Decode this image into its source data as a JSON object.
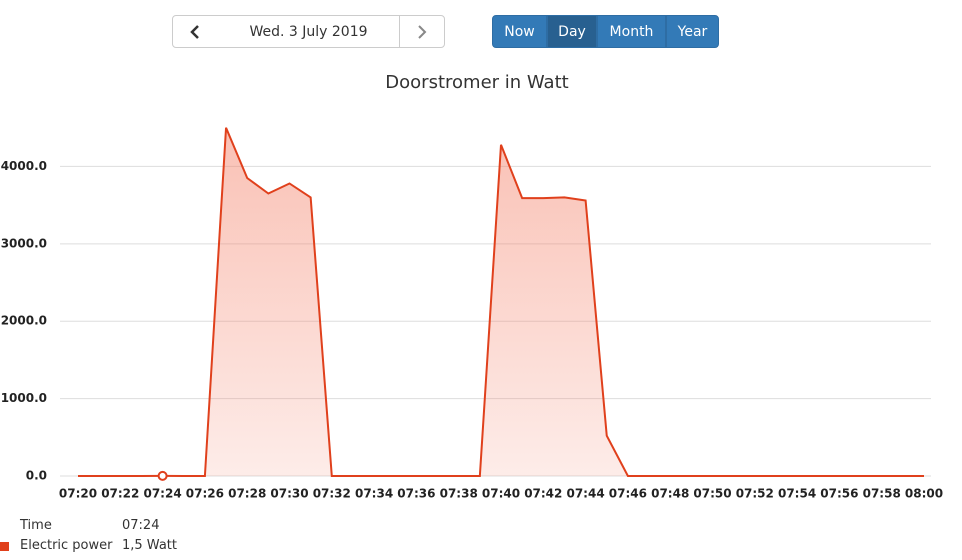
{
  "nav": {
    "date": "Wed. 3 July 2019",
    "buttons": [
      "Now",
      "Day",
      "Month",
      "Year"
    ],
    "active": 1
  },
  "chart_data": {
    "type": "area",
    "title": "Doorstromer in Watt",
    "color": "#e0401c",
    "categories": [
      "07:20",
      null,
      "07:22",
      null,
      "07:24",
      null,
      "07:26",
      null,
      "07:28",
      null,
      "07:30",
      null,
      "07:32",
      null,
      "07:34",
      null,
      "07:36",
      null,
      "07:38",
      null,
      "07:40",
      null,
      "07:42",
      null,
      "07:44",
      null,
      "07:46",
      null,
      "07:48",
      null,
      "07:50",
      null,
      "07:52",
      null,
      "07:54",
      null,
      "07:56",
      null,
      "07:58",
      null,
      "08:00"
    ],
    "values": [
      0,
      0,
      0,
      0,
      1.5,
      0,
      0,
      4500,
      3850,
      3650,
      3780,
      3600,
      0,
      0,
      0,
      0,
      0,
      0,
      0,
      0,
      4280,
      3590,
      3590,
      3600,
      3560,
      520,
      0,
      0,
      0,
      0,
      0,
      0,
      0,
      0,
      0,
      0,
      0,
      0,
      0,
      0,
      0
    ],
    "ylim": [
      0,
      4600
    ],
    "yticks": [
      {
        "value": 0,
        "label": "0.0"
      },
      {
        "value": 1000,
        "label": "1000.0"
      },
      {
        "value": 2000,
        "label": "2000.0"
      },
      {
        "value": 3000,
        "label": "3000.0"
      },
      {
        "value": 4000,
        "label": "4000.0"
      }
    ],
    "grid": true,
    "highlight": 4
  },
  "tooltip": {
    "rows": [
      {
        "label": "Time",
        "value": "07:24"
      },
      {
        "label": "Electric power",
        "value": "1,5 Watt"
      }
    ]
  }
}
